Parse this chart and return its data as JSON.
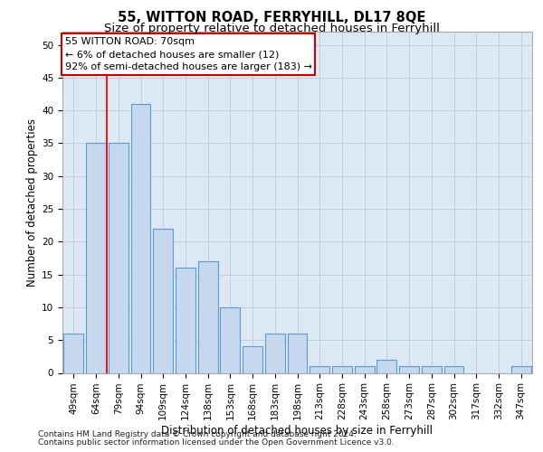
{
  "title": "55, WITTON ROAD, FERRYHILL, DL17 8QE",
  "subtitle": "Size of property relative to detached houses in Ferryhill",
  "xlabel": "Distribution of detached houses by size in Ferryhill",
  "ylabel": "Number of detached properties",
  "categories": [
    "49sqm",
    "64sqm",
    "79sqm",
    "94sqm",
    "109sqm",
    "124sqm",
    "138sqm",
    "153sqm",
    "168sqm",
    "183sqm",
    "198sqm",
    "213sqm",
    "228sqm",
    "243sqm",
    "258sqm",
    "273sqm",
    "287sqm",
    "302sqm",
    "317sqm",
    "332sqm",
    "347sqm"
  ],
  "values": [
    6,
    35,
    35,
    41,
    22,
    16,
    17,
    10,
    4,
    6,
    6,
    1,
    1,
    1,
    2,
    1,
    1,
    1,
    0,
    0,
    1
  ],
  "bar_color": "#c5d8ed",
  "bar_edge_color": "#5b9bd5",
  "bar_edge_width": 0.8,
  "grid_color": "#c0c8d8",
  "background_color": "#dce9f5",
  "red_line_x": 1.5,
  "annotation_text": "55 WITTON ROAD: 70sqm\n← 6% of detached houses are smaller (12)\n92% of semi-detached houses are larger (183) →",
  "annotation_box_color": "#ffffff",
  "annotation_border_color": "#cc0000",
  "footer_line1": "Contains HM Land Registry data © Crown copyright and database right 2024.",
  "footer_line2": "Contains public sector information licensed under the Open Government Licence v3.0.",
  "ylim": [
    0,
    52
  ],
  "yticks": [
    0,
    5,
    10,
    15,
    20,
    25,
    30,
    35,
    40,
    45,
    50
  ],
  "title_fontsize": 10.5,
  "subtitle_fontsize": 9.5,
  "axis_label_fontsize": 8.5,
  "tick_fontsize": 7.5,
  "footer_fontsize": 6.5,
  "annotation_fontsize": 8
}
